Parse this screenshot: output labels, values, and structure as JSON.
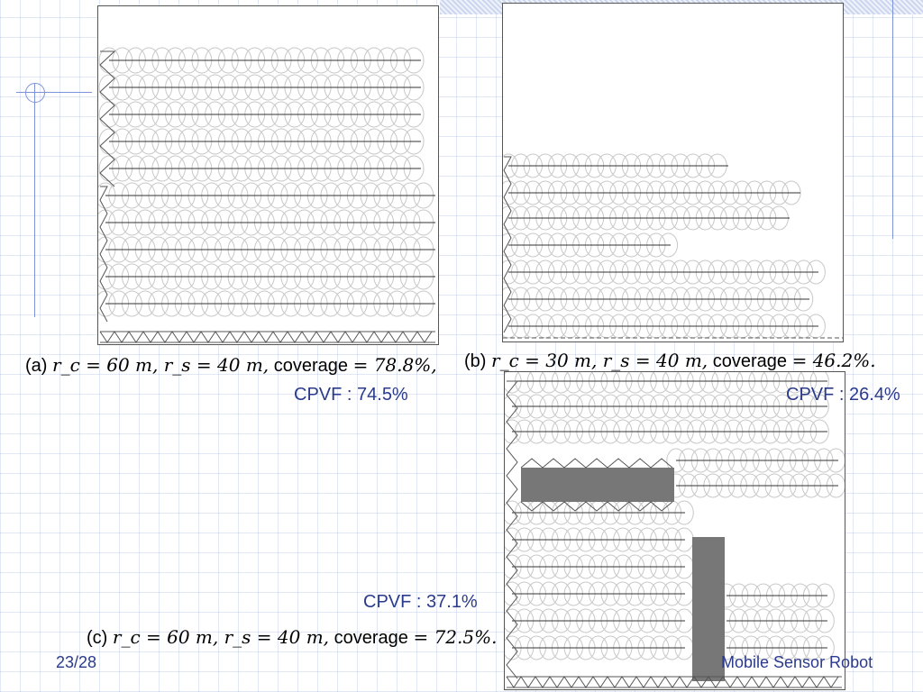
{
  "panels": {
    "a": {
      "label": "(a)",
      "math": "r_c = 60 m, r_s = 40 m,",
      "coverage_label": "coverage",
      "coverage_value": "= 78.8%,",
      "cpvf": "CPVF : 74.5%"
    },
    "b": {
      "label": "(b)",
      "math": "r_c = 30 m, r_s = 40 m,",
      "coverage_label": "coverage",
      "coverage_value": "= 46.2%.",
      "cpvf": "CPVF : 26.4%"
    },
    "c": {
      "label": "(c)",
      "math": "r_c = 60 m, r_s = 40 m,",
      "coverage_label": "coverage",
      "coverage_value": "= 72.5%.",
      "cpvf": "CPVF : 37.1%"
    }
  },
  "footer": {
    "page": "23/28",
    "title": "Mobile Sensor Robot"
  },
  "colors": {
    "accent": "#2a3a8c",
    "obstacle": "#777777",
    "circle": "#c8c8c8",
    "path": "#333333"
  }
}
